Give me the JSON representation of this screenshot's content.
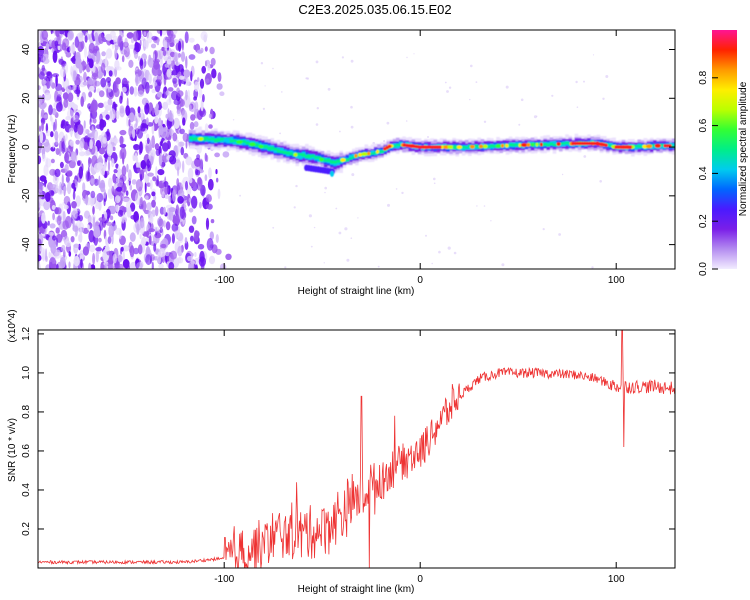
{
  "page_title": "C2E3.2025.035.06.15.E02",
  "chart_data": [
    {
      "type": "heatmap",
      "name": "spectrogram",
      "xlabel": "Height of straight line (km)",
      "ylabel": "Frequency (Hz)",
      "xlim": [
        -195,
        130
      ],
      "ylim": [
        -50,
        48
      ],
      "x_ticks": [
        {
          "value": -100,
          "label": "-100"
        },
        {
          "value": 0,
          "label": "0"
        },
        {
          "value": 100,
          "label": "100"
        }
      ],
      "y_ticks": [
        {
          "value": 40,
          "label": "40"
        },
        {
          "value": 20,
          "label": "20"
        },
        {
          "value": 0,
          "label": "0"
        },
        {
          "value": -20,
          "label": "-20"
        },
        {
          "value": -40,
          "label": "-40"
        }
      ],
      "ridge_trace": {
        "x": [
          -115,
          -105,
          -95,
          -85,
          -75,
          -65,
          -55,
          -45,
          -40,
          -35,
          -30,
          -25,
          -20,
          -15,
          -10,
          -5,
          0,
          10,
          20,
          40,
          60,
          80,
          90,
          100,
          110,
          120,
          130
        ],
        "freq": [
          3.5,
          3.0,
          2.5,
          1.0,
          -1.0,
          -3.0,
          -4.0,
          -6.5,
          -5.5,
          -4.0,
          -3.0,
          -2.5,
          -1.5,
          0.5,
          1.0,
          0.5,
          0.0,
          0.0,
          0.0,
          0.5,
          1.0,
          1.5,
          1.5,
          0.0,
          0.0,
          0.5,
          0.5
        ]
      },
      "colorbar": {
        "label": "Normalized spectral amplitude",
        "range": [
          0,
          1
        ],
        "ticks": [
          {
            "value": 0.0,
            "label": "0.0"
          },
          {
            "value": 0.2,
            "label": "0.2"
          },
          {
            "value": 0.4,
            "label": "0.4"
          },
          {
            "value": 0.6,
            "label": "0.6"
          },
          {
            "value": 0.8,
            "label": "0.8"
          }
        ],
        "colors": [
          "#f2ecff",
          "#b48cf0",
          "#7a1fe8",
          "#4a1aff",
          "#0066ff",
          "#00ccee",
          "#00ee88",
          "#33ff33",
          "#bbff00",
          "#ffee00",
          "#ff9900",
          "#ff2200",
          "#ff1493"
        ]
      }
    },
    {
      "type": "line",
      "name": "snr",
      "xlabel": "Height of straight line (km)",
      "ylabel": "SNR (10 * v/v)",
      "y_multiplier": "(x10^4)",
      "xlim": [
        -195,
        130
      ],
      "ylim": [
        0,
        1.22
      ],
      "line_color": "#ee3333",
      "x_ticks": [
        {
          "value": -100,
          "label": "-100"
        },
        {
          "value": 0,
          "label": "0"
        },
        {
          "value": 100,
          "label": "100"
        }
      ],
      "y_ticks": [
        {
          "value": 0.2,
          "label": "0.2"
        },
        {
          "value": 0.4,
          "label": "0.4"
        },
        {
          "value": 0.6,
          "label": "0.6"
        },
        {
          "value": 0.8,
          "label": "0.8"
        },
        {
          "value": 1.0,
          "label": "1.0"
        },
        {
          "value": 1.2,
          "label": "1.2"
        }
      ],
      "envelope": {
        "x": [
          -195,
          -120,
          -100,
          -90,
          -80,
          -70,
          -60,
          -50,
          -40,
          -30,
          -20,
          -10,
          0,
          10,
          20,
          30,
          40,
          60,
          80,
          90,
          95,
          100,
          105,
          110,
          120,
          130
        ],
        "y": [
          0.03,
          0.03,
          0.05,
          0.08,
          0.12,
          0.18,
          0.18,
          0.2,
          0.28,
          0.38,
          0.45,
          0.55,
          0.6,
          0.75,
          0.88,
          0.97,
          1.0,
          1.0,
          0.99,
          0.97,
          0.95,
          0.93,
          0.93,
          0.93,
          0.93,
          0.92
        ]
      },
      "spikes": [
        {
          "x": -63,
          "y": 0.44
        },
        {
          "x": -30,
          "y": 0.88
        },
        {
          "x": -26,
          "y": 0.0
        },
        {
          "x": -13,
          "y": 0.78
        },
        {
          "x": 103,
          "y": 1.22
        },
        {
          "x": 104,
          "y": 0.62
        }
      ]
    }
  ]
}
